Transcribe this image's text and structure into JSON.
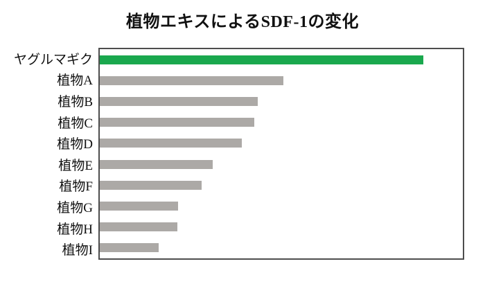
{
  "chart_data": {
    "type": "bar",
    "orientation": "horizontal",
    "title": "植物エキスによるSDF-1の変化",
    "categories": [
      "ヤグルマギク",
      "植物A",
      "植物B",
      "植物C",
      "植物D",
      "植物E",
      "植物F",
      "植物G",
      "植物H",
      "植物I"
    ],
    "values": [
      89.2,
      50.5,
      43.5,
      42.5,
      39.1,
      31.1,
      28.1,
      21.6,
      21.4,
      16.3
    ],
    "xlabel": "",
    "ylabel": "",
    "xlim": [
      0,
      100
    ],
    "grid": false,
    "legend": false,
    "axis_ticks_shown": false,
    "highlight_category": "ヤグルマギク",
    "colors": {
      "highlight_bar": "#1aa84e",
      "default_bar": "#aca9a6",
      "frame_border": "#4d4d4d",
      "title_text": "#111111",
      "label_text": "#111111",
      "background": "#ffffff"
    }
  }
}
